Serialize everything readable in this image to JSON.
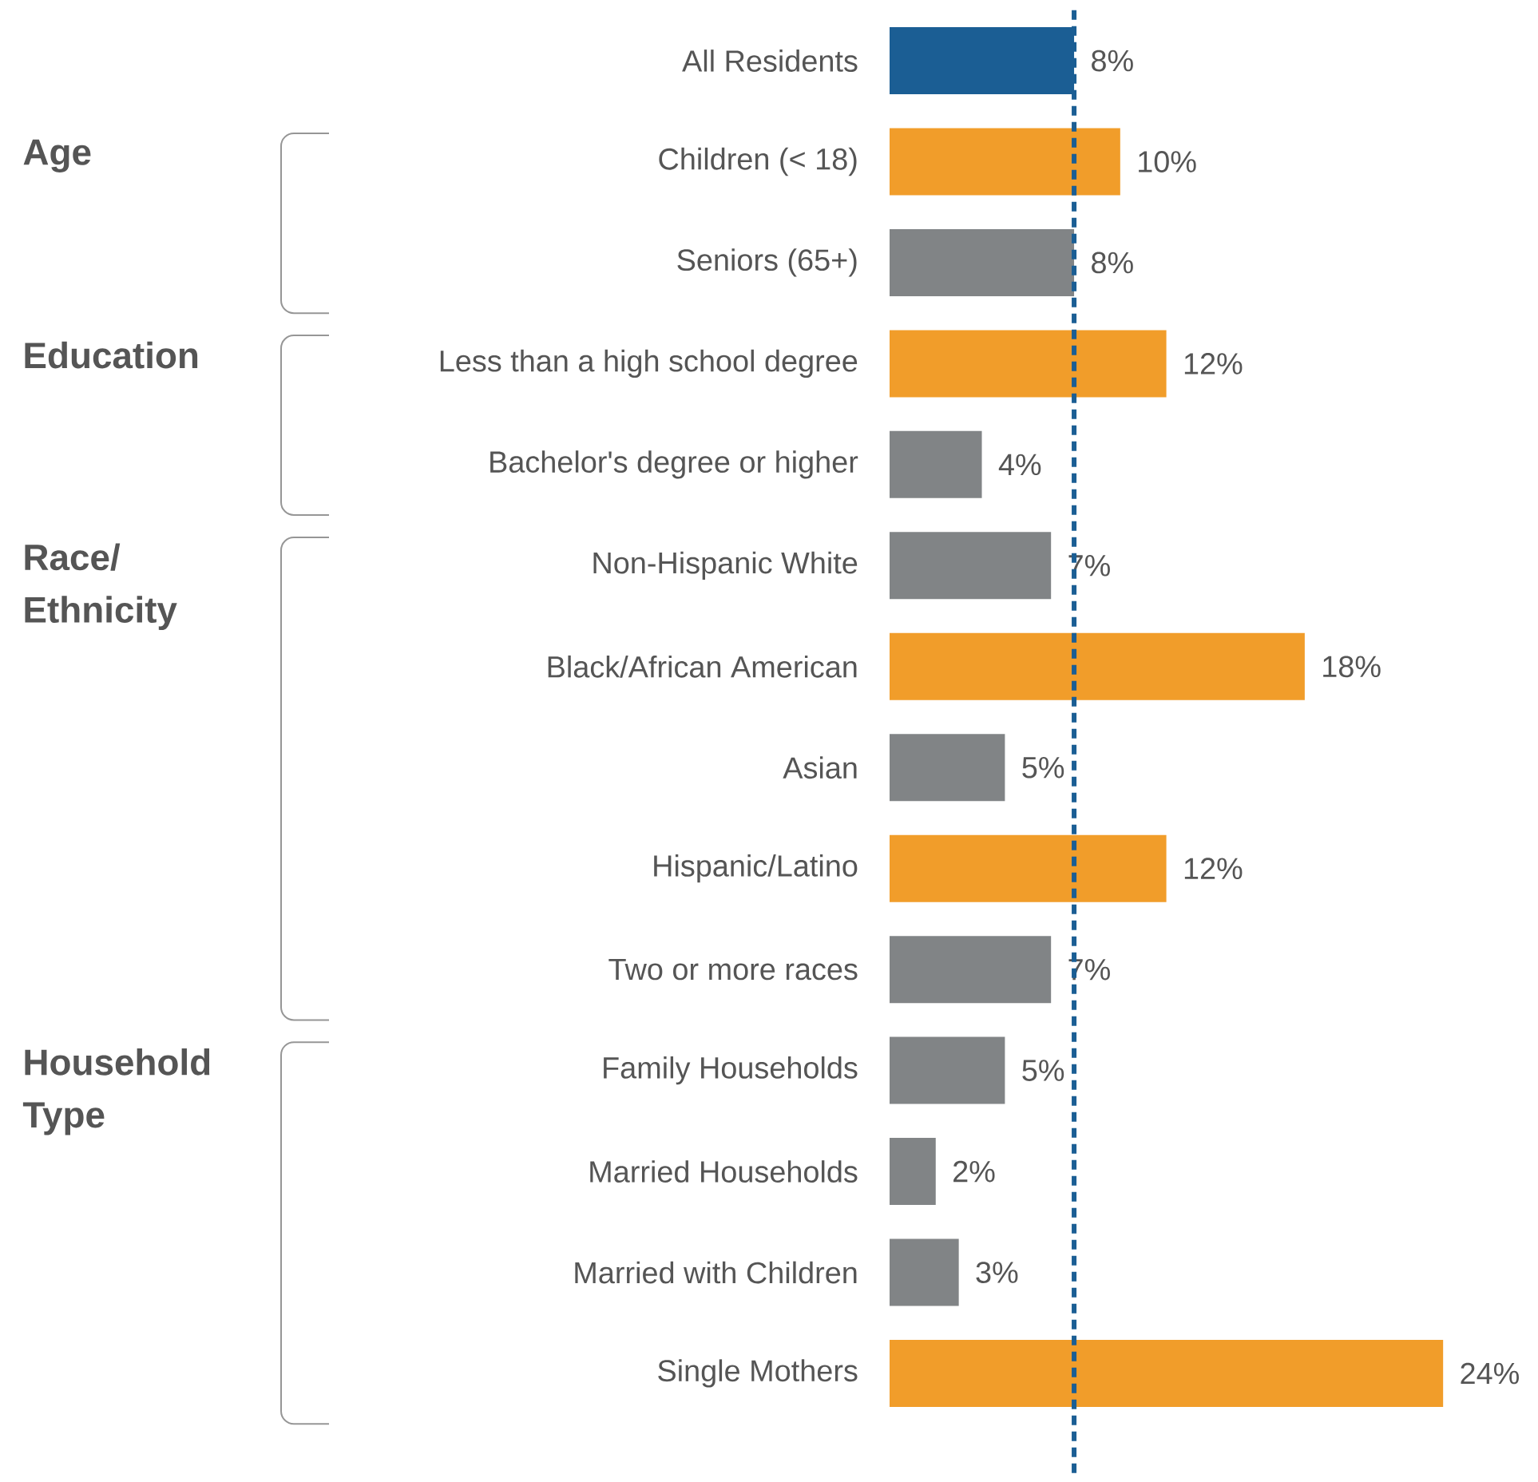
{
  "chart_data": {
    "type": "bar",
    "orientation": "horizontal",
    "tick_labels": "y",
    "categories": [
      "All Residents",
      "Children (< 18)",
      "Seniors (65+)",
      "Less than a high school degree",
      "Bachelor's degree or higher",
      "Non-Hispanic White",
      "Black/African American",
      "Asian",
      "Hispanic/Latino",
      "Two or more races",
      "Family Households",
      "Married Households",
      "Married with Children",
      "Single Mothers"
    ],
    "values": [
      8,
      10,
      8,
      12,
      4,
      7,
      18,
      5,
      12,
      7,
      5,
      2,
      3,
      24
    ],
    "value_labels": [
      "8%",
      "10%",
      "8%",
      "12%",
      "4%",
      "7%",
      "18%",
      "5%",
      "12%",
      "7%",
      "5%",
      "2%",
      "3%",
      "24%"
    ],
    "colors": [
      "#1b5e94",
      "#f19d2a",
      "#818486",
      "#f19d2a",
      "#818486",
      "#818486",
      "#f19d2a",
      "#818486",
      "#f19d2a",
      "#818486",
      "#818486",
      "#818486",
      "#818486",
      "#f19d2a"
    ],
    "ref_lines": [
      {
        "axis": "x",
        "value": 8,
        "color": "#1b5e94",
        "line_style": "dashed"
      }
    ],
    "annotations": [
      "Age",
      "Education",
      "Race/Ethnicity",
      "Household Type"
    ]
  }
}
